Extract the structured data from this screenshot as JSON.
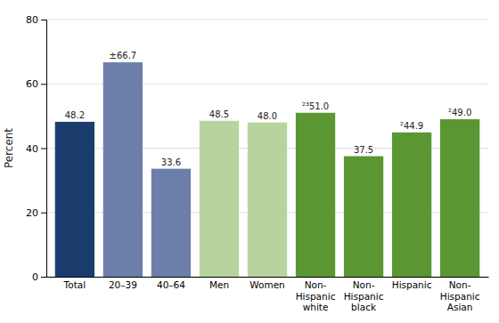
{
  "chart_data": {
    "type": "bar",
    "categories": [
      "Total",
      "20–39",
      "40–64",
      "Men",
      "Women",
      "Non-\nHispanic\nwhite",
      "Non-\nHispanic\nblack",
      "Hispanic",
      "Non-\nHispanic\nAsian"
    ],
    "values": [
      48.2,
      66.7,
      33.6,
      48.5,
      48.0,
      51.0,
      37.5,
      44.9,
      49.0
    ],
    "value_labels": [
      "48.2",
      "±66.7",
      "33.6",
      "48.5",
      "48.0",
      "²³51.0",
      "37.5",
      "²44.9",
      "²49.0"
    ],
    "colors": [
      "#1b3d6e",
      "#6b7faa",
      "#6b7faa",
      "#b8d49e",
      "#b8d49e",
      "#5a9632",
      "#5a9632",
      "#5a9632",
      "#5a9632"
    ],
    "ylabel": "Percent",
    "ylim": [
      0,
      80
    ],
    "yticks": [
      0,
      20,
      40,
      60,
      80
    ],
    "grid": true,
    "data_labels": true
  }
}
